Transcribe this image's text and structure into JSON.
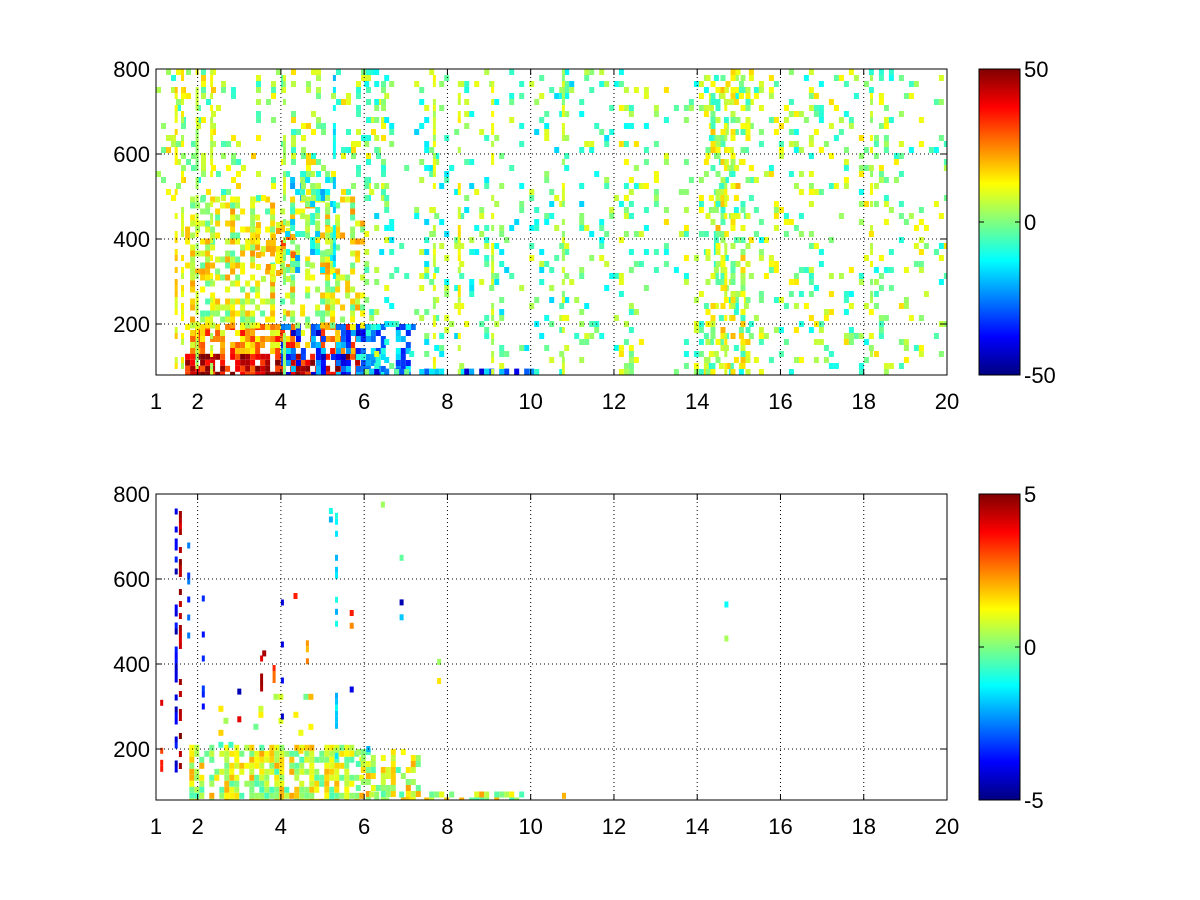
{
  "chart_data": [
    {
      "type": "heatmap",
      "xticks": [
        1,
        2,
        4,
        6,
        8,
        10,
        12,
        14,
        16,
        18,
        20
      ],
      "yticks": [
        200,
        400,
        600,
        800
      ],
      "xlim": [
        1,
        20
      ],
      "ylim": [
        80,
        800
      ],
      "grid": true,
      "colorbar": {
        "min": -50,
        "max": 50,
        "ticks": [
          50,
          0,
          -50
        ],
        "colormap": "jet"
      },
      "regions": [
        {
          "x": [
            1.7,
            6.0
          ],
          "y": [
            80,
            130
          ],
          "value": 42,
          "density": 0.85
        },
        {
          "x": [
            1.7,
            6.0
          ],
          "y": [
            130,
            200
          ],
          "value": 22,
          "density": 0.7
        },
        {
          "x": [
            4.0,
            6.1
          ],
          "y": [
            80,
            200
          ],
          "value": -30,
          "density": 0.45
        },
        {
          "x": [
            5.8,
            7.2
          ],
          "y": [
            80,
            200
          ],
          "value": -22,
          "density": 0.5
        },
        {
          "x": [
            6.0,
            10.0
          ],
          "y": [
            80,
            95
          ],
          "value": -28,
          "density": 0.6
        },
        {
          "x": [
            1.7,
            6.0
          ],
          "y": [
            200,
            500
          ],
          "value": 9,
          "density": 0.45
        },
        {
          "x": [
            3.4,
            4.3
          ],
          "y": [
            300,
            440
          ],
          "value": 18,
          "density": 0.55
        },
        {
          "x": [
            4.1,
            5.3
          ],
          "y": [
            330,
            560
          ],
          "value": -8,
          "density": 0.35
        },
        {
          "x": [
            1.0,
            6.5
          ],
          "y": [
            500,
            800
          ],
          "value": 4,
          "density": 0.25
        },
        {
          "x": [
            6.0,
            12.0
          ],
          "y": [
            80,
            800
          ],
          "value": -3,
          "density": 0.13
        },
        {
          "x": [
            12.0,
            20.0
          ],
          "y": [
            80,
            800
          ],
          "value": 2,
          "density": 0.17
        },
        {
          "x": [
            14.2,
            15.2
          ],
          "y": [
            80,
            800
          ],
          "value": 6,
          "density": 0.32
        }
      ],
      "stripes": [
        {
          "x": 1.45,
          "y": [
            80,
            800
          ],
          "value": 14
        },
        {
          "x": 1.6,
          "y": [
            80,
            800
          ],
          "value": 10
        },
        {
          "x": 1.95,
          "y": [
            80,
            800
          ],
          "value": 6
        },
        {
          "x": 2.3,
          "y": [
            80,
            800
          ],
          "value": 8
        },
        {
          "x": 4.05,
          "y": [
            80,
            800
          ],
          "value": 5
        },
        {
          "x": 5.25,
          "y": [
            300,
            800
          ],
          "value": -14
        },
        {
          "x": 7.65,
          "y": [
            80,
            800
          ],
          "value": 8
        },
        {
          "x": 8.25,
          "y": [
            80,
            800
          ],
          "value": 10
        },
        {
          "x": 9.05,
          "y": [
            80,
            800
          ],
          "value": 8
        },
        {
          "x": 10.75,
          "y": [
            80,
            800
          ],
          "value": 6
        },
        {
          "x": 14.65,
          "y": [
            80,
            800
          ],
          "value": 10
        },
        {
          "x": 18.15,
          "y": [
            80,
            800
          ],
          "value": 6
        }
      ],
      "seed": 11
    },
    {
      "type": "heatmap",
      "xticks": [
        1,
        2,
        4,
        6,
        8,
        10,
        12,
        14,
        16,
        18,
        20
      ],
      "yticks": [
        200,
        400,
        600,
        800
      ],
      "xlim": [
        1,
        20
      ],
      "ylim": [
        80,
        800
      ],
      "grid": true,
      "colorbar": {
        "min": -5,
        "max": 5,
        "ticks": [
          5,
          0,
          -5
        ],
        "colormap": "jet"
      },
      "regions": [
        {
          "x": [
            1.8,
            6.0
          ],
          "y": [
            80,
            210
          ],
          "value": 0.8,
          "density": 0.8
        },
        {
          "x": [
            5.8,
            7.3
          ],
          "y": [
            80,
            200
          ],
          "value": 0.8,
          "density": 0.45
        },
        {
          "x": [
            6.0,
            9.8
          ],
          "y": [
            80,
            100
          ],
          "value": 0.8,
          "density": 0.45
        },
        {
          "x": [
            2.5,
            5.3
          ],
          "y": [
            200,
            330
          ],
          "value": 0.6,
          "density": 0.06
        }
      ],
      "stripes": [
        {
          "x": 1.45,
          "y": [
            120,
            780
          ],
          "value": -4,
          "density": 0.45
        },
        {
          "x": 1.55,
          "y": [
            130,
            760
          ],
          "value": 4.5,
          "density": 0.45
        },
        {
          "x": 1.1,
          "y": [
            80,
            330
          ],
          "value": 3.5,
          "density": 0.3
        },
        {
          "x": 1.75,
          "y": [
            460,
            700
          ],
          "value": -3,
          "density": 0.3
        },
        {
          "x": 2.1,
          "y": [
            220,
            660
          ],
          "value": -3.5,
          "density": 0.25
        },
        {
          "x": 5.3,
          "y": [
            80,
            770
          ],
          "value": -1.5,
          "density": 0.3
        },
        {
          "x": 4.0,
          "y": [
            230,
            580
          ],
          "value": -4,
          "density": 0.15
        },
        {
          "x": 4.6,
          "y": [
            360,
            470
          ],
          "value": 2.5,
          "density": 0.4
        },
        {
          "x": 3.5,
          "y": [
            330,
            420
          ],
          "value": 4.2,
          "density": 0.4
        },
        {
          "x": 3.8,
          "y": [
            360,
            440
          ],
          "value": 2.8,
          "density": 0.4
        }
      ],
      "points": [
        {
          "x": 6.9,
          "y": 545,
          "value": -4.5
        },
        {
          "x": 6.9,
          "y": 510,
          "value": -1.8
        },
        {
          "x": 6.9,
          "y": 650,
          "value": -0.3
        },
        {
          "x": 14.7,
          "y": 540,
          "value": -1.2
        },
        {
          "x": 14.7,
          "y": 460,
          "value": 0.4
        },
        {
          "x": 7.8,
          "y": 405,
          "value": 0.3
        },
        {
          "x": 7.8,
          "y": 360,
          "value": 1.5
        },
        {
          "x": 10.8,
          "y": 90,
          "value": 2
        },
        {
          "x": 3.0,
          "y": 270,
          "value": 4
        },
        {
          "x": 3.0,
          "y": 335,
          "value": -4.5
        },
        {
          "x": 5.2,
          "y": 740,
          "value": -2
        },
        {
          "x": 5.2,
          "y": 760,
          "value": -1
        },
        {
          "x": 6.45,
          "y": 775,
          "value": 0.3
        },
        {
          "x": 3.6,
          "y": 425,
          "value": 4.6
        },
        {
          "x": 4.35,
          "y": 560,
          "value": 3.5
        },
        {
          "x": 5.7,
          "y": 490,
          "value": 2.4
        },
        {
          "x": 5.7,
          "y": 520,
          "value": 3.5
        },
        {
          "x": 6.1,
          "y": 200,
          "value": -2
        },
        {
          "x": 5.7,
          "y": 340,
          "value": -4
        }
      ],
      "seed": 29
    }
  ]
}
